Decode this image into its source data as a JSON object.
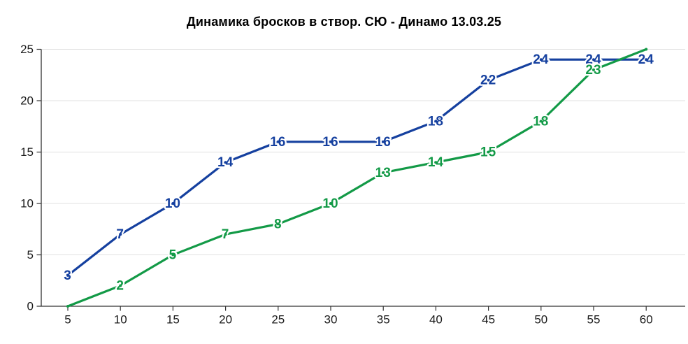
{
  "chart_data": {
    "type": "line",
    "title": "Динамика бросков в створ. СЮ - Динамо 13.03.25",
    "x": [
      5,
      10,
      15,
      20,
      25,
      30,
      35,
      40,
      45,
      50,
      55,
      60
    ],
    "series": [
      {
        "name": "shots-blue",
        "color": "#15409f",
        "values": [
          3,
          7,
          10,
          14,
          16,
          16,
          16,
          18,
          22,
          24,
          24,
          24
        ],
        "point_labels": [
          "3",
          "7",
          "10",
          "14",
          "16",
          "16",
          "16",
          "18",
          "22",
          "24",
          "24",
          "24"
        ]
      },
      {
        "name": "shots-green",
        "color": "#139a47",
        "values": [
          0,
          2,
          5,
          7,
          8,
          10,
          13,
          14,
          15,
          18,
          23,
          25
        ],
        "point_labels": [
          "",
          "2",
          "5",
          "7",
          "8",
          "10",
          "13",
          "14",
          "15",
          "18",
          "23",
          ""
        ]
      }
    ],
    "xticks": [
      5,
      10,
      15,
      20,
      25,
      30,
      35,
      40,
      45,
      50,
      55,
      60
    ],
    "yticks": [
      0,
      5,
      10,
      15,
      20,
      25
    ],
    "xlim": [
      2.5,
      63.5
    ],
    "ylim": [
      0,
      25
    ],
    "grid": "horizontal",
    "legend": "none",
    "axis_color": "#333333",
    "grid_color": "#e0e0e0",
    "tick_label_color": "#1a1a1a",
    "background_color": "#ffffff"
  }
}
